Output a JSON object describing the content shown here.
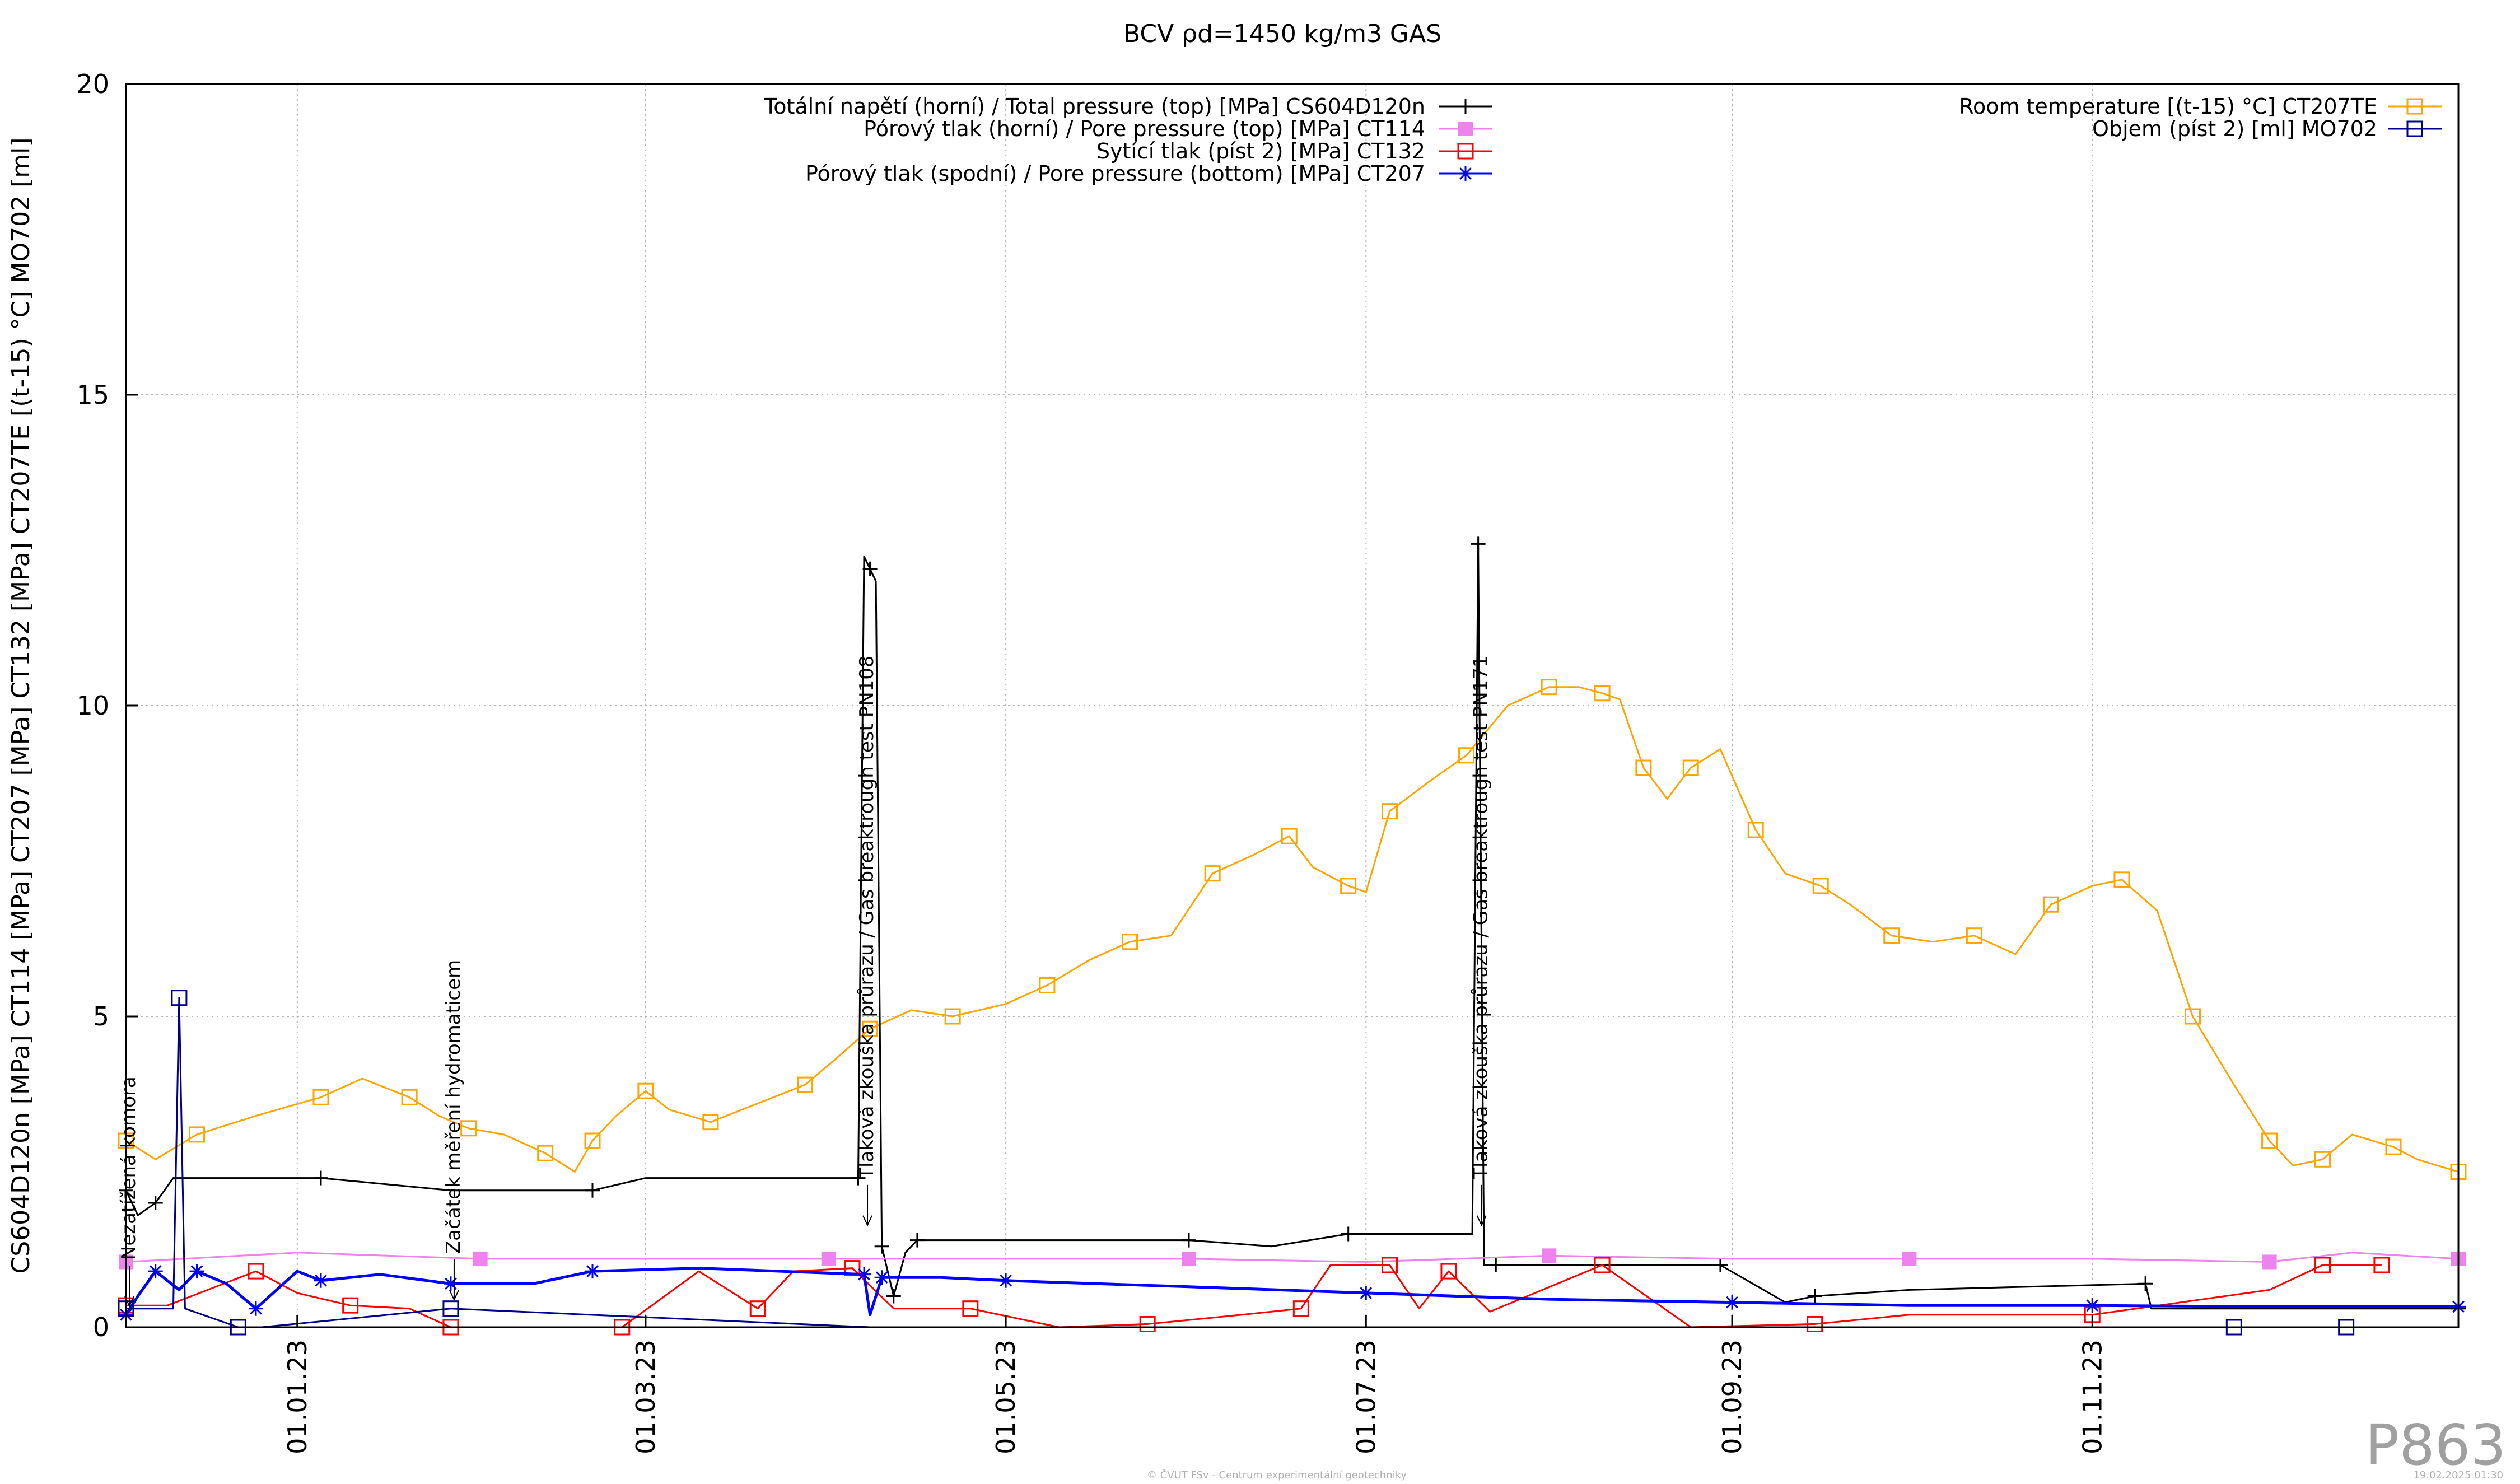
{
  "page": {
    "badge": "P863",
    "footer_center": "© ČVUT FSv - Centrum experimentální geotechniky",
    "footer_right": "19.02.2025 01:30"
  },
  "chart_data": {
    "type": "line",
    "title": "BCV ρd=1450 kg/m3 GAS",
    "ylabel": "CS604D120n [MPa] CT114 [MPa] CT207 [MPa] CT132 [MPa] CT207TE [(t-15) °C] MO702 [ml]",
    "xlabel": "",
    "ylim": [
      0,
      20
    ],
    "y_ticks": [
      0,
      5,
      10,
      15,
      20
    ],
    "xlim": [
      "2022-12-03",
      "2024-01-02"
    ],
    "x_ticks": [
      {
        "date": "2023-01-01",
        "label": "01.01.23"
      },
      {
        "date": "2023-03-01",
        "label": "01.03.23"
      },
      {
        "date": "2023-05-01",
        "label": "01.05.23"
      },
      {
        "date": "2023-07-01",
        "label": "01.07.23"
      },
      {
        "date": "2023-09-01",
        "label": "01.09.23"
      },
      {
        "date": "2023-11-01",
        "label": "01.11.23"
      }
    ],
    "grid": true,
    "legend_left": [
      {
        "label": "Totální napětí (horní) / Total pressure (top) [MPa] CS604D120n",
        "series": "CS604D120n"
      },
      {
        "label": "Pórový tlak (horní) / Pore pressure (top) [MPa] CT114",
        "series": "CT114"
      },
      {
        "label": "Sytící tlak (píst 2) [MPa] CT132",
        "series": "CT132"
      },
      {
        "label": "Pórový tlak (spodní) / Pore pressure (bottom) [MPa] CT207",
        "series": "CT207"
      }
    ],
    "legend_right": [
      {
        "label": "Room temperature [(t-15) °C] CT207TE",
        "series": "CT207TE"
      },
      {
        "label": "Objem (píst 2) [ml] MO702",
        "series": "MO702"
      }
    ],
    "annotations": [
      {
        "text": "Nezatížená komora",
        "date": "2022-12-03",
        "y": 0.9
      },
      {
        "text": "Začátek měření hydromaticem",
        "date": "2023-01-27",
        "y": 1.0
      },
      {
        "text": "Tlaková zkouška průrazu / Gas breaktrough test PN108",
        "date": "2023-04-07",
        "y": 2.2
      },
      {
        "text": "Tlaková zkouška průrazu / Gas breaktrough test PN171",
        "date": "2023-07-20",
        "y": 2.2
      }
    ],
    "series": [
      {
        "name": "CT207TE",
        "color": "#ffa500",
        "marker": "open-square",
        "x": [
          "2022-12-03",
          "2022-12-08",
          "2022-12-15",
          "2022-12-25",
          "2023-01-05",
          "2023-01-12",
          "2023-01-20",
          "2023-01-25",
          "2023-01-30",
          "2023-02-05",
          "2023-02-12",
          "2023-02-17",
          "2023-02-20",
          "2023-02-24",
          "2023-03-01",
          "2023-03-05",
          "2023-03-12",
          "2023-03-20",
          "2023-03-28",
          "2023-04-02",
          "2023-04-08",
          "2023-04-15",
          "2023-04-22",
          "2023-05-01",
          "2023-05-08",
          "2023-05-15",
          "2023-05-22",
          "2023-05-29",
          "2023-06-05",
          "2023-06-12",
          "2023-06-18",
          "2023-06-22",
          "2023-06-28",
          "2023-07-01",
          "2023-07-05",
          "2023-07-12",
          "2023-07-18",
          "2023-07-25",
          "2023-08-01",
          "2023-08-06",
          "2023-08-10",
          "2023-08-13",
          "2023-08-17",
          "2023-08-21",
          "2023-08-25",
          "2023-08-30",
          "2023-09-05",
          "2023-09-10",
          "2023-09-16",
          "2023-09-21",
          "2023-09-28",
          "2023-10-05",
          "2023-10-12",
          "2023-10-19",
          "2023-10-25",
          "2023-11-01",
          "2023-11-06",
          "2023-11-12",
          "2023-11-18",
          "2023-11-25",
          "2023-12-01",
          "2023-12-05",
          "2023-12-10",
          "2023-12-15",
          "2023-12-22",
          "2023-12-26",
          "2024-01-02"
        ],
        "values": [
          3.0,
          2.7,
          3.1,
          3.4,
          3.7,
          4.0,
          3.7,
          3.4,
          3.2,
          3.1,
          2.8,
          2.5,
          3.0,
          3.4,
          3.8,
          3.5,
          3.3,
          3.6,
          3.9,
          4.3,
          4.8,
          5.1,
          5.0,
          5.2,
          5.5,
          5.9,
          6.2,
          6.3,
          7.3,
          7.6,
          7.9,
          7.4,
          7.1,
          7.0,
          8.3,
          8.8,
          9.2,
          10.0,
          10.3,
          10.3,
          10.2,
          10.1,
          9.0,
          8.5,
          9.0,
          9.3,
          8.0,
          7.3,
          7.1,
          6.8,
          6.3,
          6.2,
          6.3,
          6.0,
          6.8,
          7.1,
          7.2,
          6.7,
          5.0,
          3.9,
          3.0,
          2.6,
          2.7,
          3.1,
          2.9,
          2.7,
          2.5
        ]
      },
      {
        "name": "CS604D120n",
        "color": "#000000",
        "marker": "plus",
        "x": [
          "2022-12-03",
          "2022-12-05",
          "2022-12-08",
          "2022-12-11",
          "2023-01-05",
          "2023-01-27",
          "2023-02-20",
          "2023-03-01",
          "2023-04-06",
          "2023-04-07",
          "2023-04-08",
          "2023-04-09",
          "2023-04-10",
          "2023-04-11",
          "2023-04-12",
          "2023-04-14",
          "2023-04-16",
          "2023-05-01",
          "2023-06-01",
          "2023-06-15",
          "2023-06-28",
          "2023-07-19",
          "2023-07-20",
          "2023-07-21",
          "2023-07-23",
          "2023-08-15",
          "2023-08-30",
          "2023-09-10",
          "2023-09-15",
          "2023-10-01",
          "2023-11-10",
          "2023-11-11",
          "2024-01-02"
        ],
        "values": [
          2.2,
          1.8,
          2.0,
          2.4,
          2.4,
          2.2,
          2.2,
          2.4,
          2.4,
          12.4,
          12.2,
          12.0,
          1.3,
          0.9,
          0.5,
          1.2,
          1.4,
          1.4,
          1.4,
          1.3,
          1.5,
          1.5,
          12.6,
          1.0,
          1.0,
          1.0,
          1.0,
          0.4,
          0.5,
          0.6,
          0.7,
          0.3,
          0.3
        ]
      },
      {
        "name": "CT114",
        "color": "#ee82ee",
        "marker": "filled-square",
        "x": [
          "2022-12-03",
          "2023-01-01",
          "2023-02-01",
          "2023-03-01",
          "2023-04-01",
          "2023-05-01",
          "2023-06-01",
          "2023-07-01",
          "2023-08-01",
          "2023-09-01",
          "2023-10-01",
          "2023-11-01",
          "2023-12-01",
          "2023-12-15",
          "2024-01-02"
        ],
        "values": [
          1.05,
          1.2,
          1.1,
          1.1,
          1.1,
          1.1,
          1.1,
          1.05,
          1.15,
          1.1,
          1.1,
          1.1,
          1.05,
          1.2,
          1.1
        ]
      },
      {
        "name": "CT132",
        "color": "#ff0000",
        "marker": "open-square",
        "x": [
          "2022-12-03",
          "2022-12-10",
          "2022-12-25",
          "2023-01-01",
          "2023-01-10",
          "2023-01-20",
          "2023-01-27",
          "2023-02-10",
          "2023-02-25",
          "2023-03-10",
          "2023-03-20",
          "2023-03-26",
          "2023-04-05",
          "2023-04-12",
          "2023-04-25",
          "2023-05-10",
          "2023-05-25",
          "2023-06-10",
          "2023-06-20",
          "2023-06-25",
          "2023-07-05",
          "2023-07-10",
          "2023-07-15",
          "2023-07-22",
          "2023-08-10",
          "2023-08-25",
          "2023-09-15",
          "2023-10-01",
          "2023-11-01",
          "2023-12-01",
          "2023-12-10",
          "2023-12-20"
        ],
        "values": [
          0.35,
          0.35,
          0.9,
          0.55,
          0.35,
          0.3,
          0.0,
          0.0,
          0.0,
          0.9,
          0.3,
          0.9,
          0.95,
          0.3,
          0.3,
          0.0,
          0.05,
          0.2,
          0.3,
          1.0,
          1.0,
          0.3,
          0.9,
          0.25,
          1.0,
          0.0,
          0.05,
          0.2,
          0.2,
          0.6,
          1.0,
          1.0
        ]
      },
      {
        "name": "CT207",
        "color": "#0000ff",
        "marker": "asterisk",
        "x": [
          "2022-12-03",
          "2022-12-05",
          "2022-12-08",
          "2022-12-12",
          "2022-12-15",
          "2022-12-20",
          "2022-12-25",
          "2023-01-01",
          "2023-01-05",
          "2023-01-15",
          "2023-01-27",
          "2023-02-10",
          "2023-02-20",
          "2023-03-10",
          "2023-04-07",
          "2023-04-08",
          "2023-04-10",
          "2023-04-20",
          "2023-05-01",
          "2023-06-01",
          "2023-07-01",
          "2023-08-01",
          "2023-09-01",
          "2023-10-01",
          "2023-11-01",
          "2023-12-01",
          "2024-01-02"
        ],
        "values": [
          0.2,
          0.5,
          0.9,
          0.6,
          0.9,
          0.7,
          0.3,
          0.9,
          0.75,
          0.85,
          0.7,
          0.7,
          0.9,
          0.95,
          0.85,
          0.2,
          0.8,
          0.8,
          0.75,
          0.65,
          0.55,
          0.45,
          0.4,
          0.35,
          0.35,
          0.33,
          0.33
        ]
      },
      {
        "name": "MO702",
        "color": "#00008b",
        "marker": "open-square",
        "x": [
          "2022-12-03",
          "2022-12-11",
          "2022-12-12",
          "2022-12-13",
          "2022-12-22",
          "2022-12-26",
          "2023-01-27",
          "2023-04-08",
          "2023-11-25",
          "2023-12-05",
          "2023-12-14"
        ],
        "values": [
          0.3,
          0.3,
          5.3,
          0.3,
          0.0,
          0.0,
          0.3,
          0.0,
          0.0,
          0.0,
          0.0
        ]
      }
    ]
  }
}
